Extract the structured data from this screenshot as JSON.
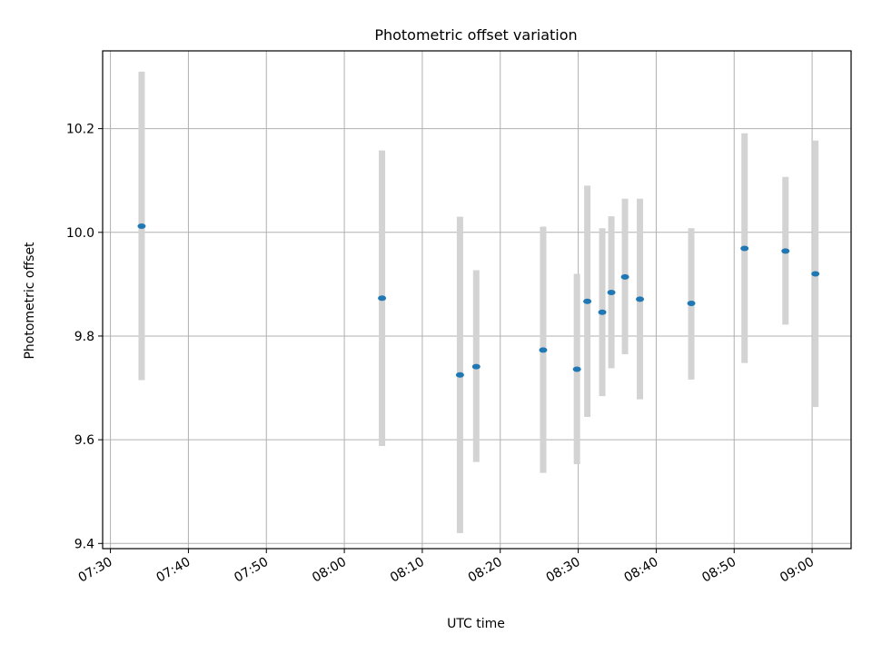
{
  "chart_data": {
    "type": "scatter",
    "title": "Photometric offset variation",
    "xlabel": "UTC time",
    "ylabel": "Photometric offset",
    "grid": true,
    "xlim": [
      "07:29",
      "09:05"
    ],
    "ylim": [
      9.39,
      10.35
    ],
    "x_ticks": [
      "07:30",
      "07:40",
      "07:50",
      "08:00",
      "08:10",
      "08:20",
      "08:30",
      "08:40",
      "08:50",
      "09:00"
    ],
    "y_ticks": [
      "9.4",
      "9.6",
      "9.8",
      "10.0",
      "10.2"
    ],
    "colors": {
      "points": "#1f77b4",
      "errorbars": "#d3d3d3",
      "grid": "#b0b0b0"
    },
    "points": [
      {
        "x": "07:34:00",
        "y": 10.012,
        "low": 9.715,
        "high": 10.31
      },
      {
        "x": "08:04:50",
        "y": 9.873,
        "low": 9.588,
        "high": 10.158
      },
      {
        "x": "08:14:50",
        "y": 9.725,
        "low": 9.42,
        "high": 10.03
      },
      {
        "x": "08:16:55",
        "y": 9.741,
        "low": 9.557,
        "high": 9.927
      },
      {
        "x": "08:25:30",
        "y": 9.773,
        "low": 9.536,
        "high": 10.011
      },
      {
        "x": "08:29:50",
        "y": 9.736,
        "low": 9.553,
        "high": 9.92
      },
      {
        "x": "08:31:10",
        "y": 9.867,
        "low": 9.644,
        "high": 10.09
      },
      {
        "x": "08:33:05",
        "y": 9.846,
        "low": 9.684,
        "high": 10.008
      },
      {
        "x": "08:34:15",
        "y": 9.884,
        "low": 9.738,
        "high": 10.031
      },
      {
        "x": "08:36:00",
        "y": 9.914,
        "low": 9.765,
        "high": 10.065
      },
      {
        "x": "08:37:55",
        "y": 9.871,
        "low": 9.678,
        "high": 10.065
      },
      {
        "x": "08:44:30",
        "y": 9.863,
        "low": 9.716,
        "high": 10.008
      },
      {
        "x": "08:51:20",
        "y": 9.969,
        "low": 9.748,
        "high": 10.191
      },
      {
        "x": "08:56:35",
        "y": 9.964,
        "low": 9.822,
        "high": 10.107
      },
      {
        "x": "09:00:25",
        "y": 9.92,
        "low": 9.663,
        "high": 10.177
      }
    ]
  }
}
